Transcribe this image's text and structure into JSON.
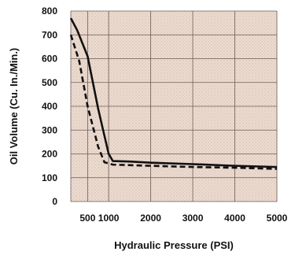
{
  "chart_data": {
    "type": "line",
    "xlabel": "Hydraulic Pressure (PSI)",
    "ylabel": "Oil Volume (Cu. In./Min.)",
    "x_ticks": [
      500,
      1000,
      2000,
      3000,
      4000,
      5000
    ],
    "y_ticks": [
      0,
      100,
      200,
      300,
      400,
      500,
      600,
      700,
      800
    ],
    "xlim": [
      100,
      5000
    ],
    "ylim": [
      0,
      800
    ],
    "grid": true,
    "background": "#e8d8cc",
    "series": [
      {
        "style": "solid",
        "color": "#111111",
        "points": [
          [
            100,
            770
          ],
          [
            250,
            720
          ],
          [
            500,
            610
          ],
          [
            750,
            390
          ],
          [
            1000,
            200
          ],
          [
            1100,
            170
          ],
          [
            1500,
            168
          ],
          [
            2000,
            163
          ],
          [
            3000,
            157
          ],
          [
            4000,
            150
          ],
          [
            5000,
            145
          ]
        ]
      },
      {
        "style": "dashed",
        "color": "#111111",
        "points": [
          [
            100,
            700
          ],
          [
            300,
            590
          ],
          [
            500,
            400
          ],
          [
            750,
            230
          ],
          [
            900,
            165
          ],
          [
            1100,
            155
          ],
          [
            2000,
            150
          ],
          [
            3000,
            145
          ],
          [
            4000,
            142
          ],
          [
            5000,
            137
          ]
        ]
      }
    ]
  }
}
